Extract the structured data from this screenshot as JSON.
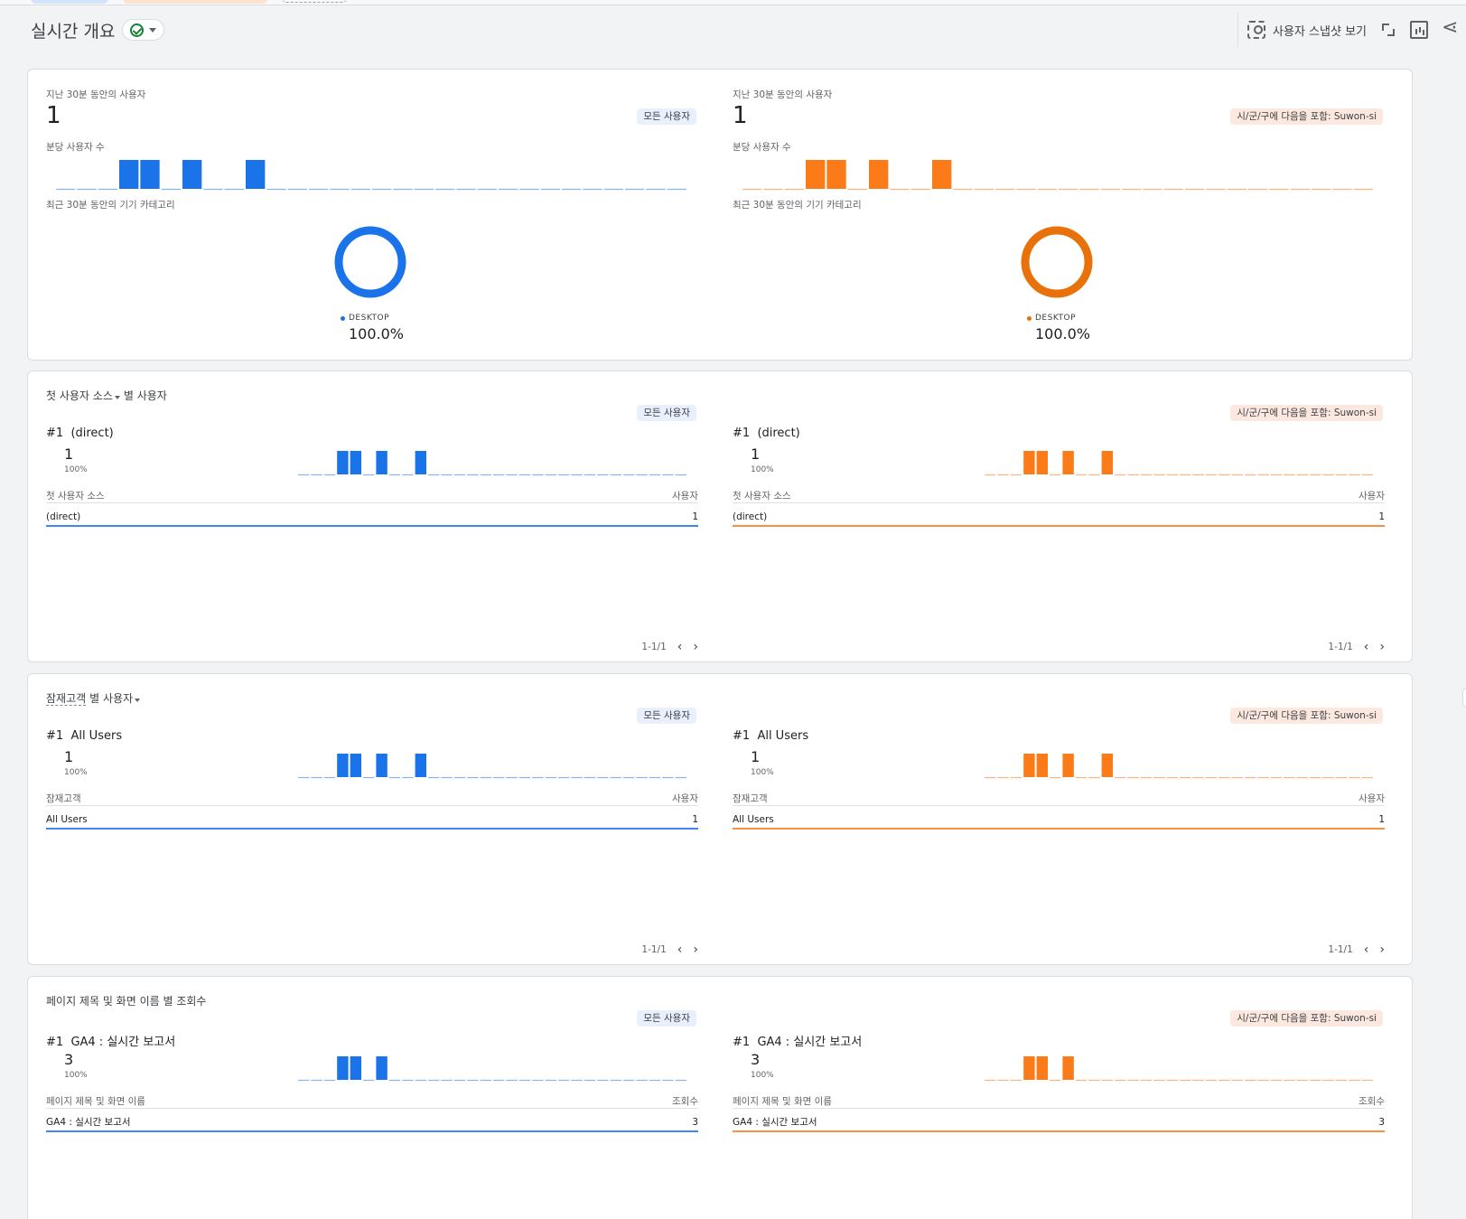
{
  "header": {
    "title": "실시간 개요",
    "snapshot_label": "사용자 스냅샷 보기"
  },
  "colors": {
    "blue": "#1a73e8",
    "blue_light": "#4285f4",
    "orange": "#fa7b17",
    "orange_dark": "#e8710a"
  },
  "comparisons": {
    "left_badge": "모든 사용자",
    "right_badge": "시/군/구에 다음을 포함: Suwon-si"
  },
  "overview": {
    "users_label": "지난 30분 동안의 사용자",
    "users_value": "1",
    "per_minute_label": "분당 사용자 수",
    "device_label": "최근 30분 동안의 기기 카테고리",
    "device_name": "DESKTOP",
    "device_pct": "100.0%",
    "per_minute_values": [
      0,
      0,
      0,
      1,
      1,
      0,
      1,
      0,
      0,
      1,
      0,
      0,
      0,
      0,
      0,
      0,
      0,
      0,
      0,
      0,
      0,
      0,
      0,
      0,
      0,
      0,
      0,
      0,
      0,
      0
    ]
  },
  "source_card": {
    "title_dim": "첫 사용자 소스",
    "title_suffix": "별 사용자",
    "rank": "#1",
    "top_name": "(direct)",
    "top_value": "1",
    "top_pct": "100%",
    "col_dim": "첫 사용자 소스",
    "col_metric": "사용자",
    "rows": [
      {
        "name": "(direct)",
        "value": "1"
      }
    ],
    "pager": "1-1/1",
    "spark": [
      0,
      0,
      0,
      1,
      1,
      0,
      1,
      0,
      0,
      1,
      0,
      0,
      0,
      0,
      0,
      0,
      0,
      0,
      0,
      0,
      0,
      0,
      0,
      0,
      0,
      0,
      0,
      0,
      0,
      0
    ]
  },
  "audience_card": {
    "title_dim": "잠재고객",
    "title_suffix": "별 사용자",
    "rank": "#1",
    "top_name": "All Users",
    "top_value": "1",
    "top_pct": "100%",
    "col_dim": "잠재고객",
    "col_metric": "사용자",
    "rows": [
      {
        "name": "All Users",
        "value": "1"
      }
    ],
    "pager": "1-1/1",
    "spark": [
      0,
      0,
      0,
      1,
      1,
      0,
      1,
      0,
      0,
      1,
      0,
      0,
      0,
      0,
      0,
      0,
      0,
      0,
      0,
      0,
      0,
      0,
      0,
      0,
      0,
      0,
      0,
      0,
      0,
      0
    ]
  },
  "pages_card": {
    "title": "페이지 제목 및 화면 이름 별 조회수",
    "rank": "#1",
    "top_name": "GA4 : 실시간 보고서",
    "top_value": "3",
    "top_pct": "100%",
    "col_dim": "페이지 제목 및 화면 이름",
    "col_metric": "조회수",
    "rows": [
      {
        "name": "GA4 : 실시간 보고서",
        "value": "3"
      }
    ],
    "spark": [
      0,
      0,
      0,
      1,
      1,
      0,
      1,
      0,
      0,
      0,
      0,
      0,
      0,
      0,
      0,
      0,
      0,
      0,
      0,
      0,
      0,
      0,
      0,
      0,
      0,
      0,
      0,
      0,
      0,
      0
    ]
  }
}
